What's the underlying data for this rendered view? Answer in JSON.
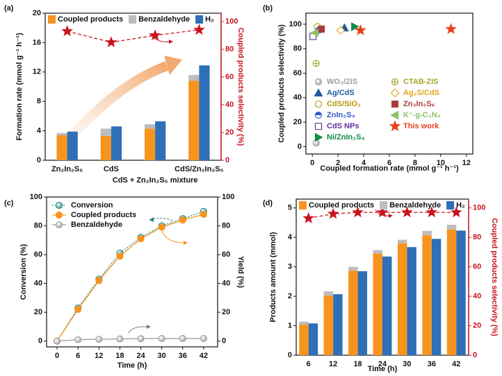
{
  "chart_data": [
    {
      "type": "bar",
      "panel_label": "(a)",
      "categories": [
        "Zn₂In₂S₅",
        "CdS",
        "CdS + Zn₂In₂S₅ mixture",
        "CdS/Zn₂In₂S₅"
      ],
      "ylabel": "Formation rate (mmol g⁻¹ h⁻¹)",
      "y2label": "Coupled products selectivity (%)",
      "ylim": [
        0,
        20
      ],
      "yticks": [
        0,
        4,
        8,
        12,
        16,
        20
      ],
      "y2lim": [
        0,
        106
      ],
      "y2ticks": [
        0,
        20,
        40,
        60,
        80,
        100
      ],
      "y2color": "#c8141e",
      "series": [
        {
          "name": "Coupled products",
          "color": "#f7941d",
          "stack": "a",
          "values": [
            3.4,
            3.3,
            4.3,
            10.8
          ]
        },
        {
          "name": "Benzaldehyde",
          "color": "#bdbdbd",
          "stack": "a",
          "values": [
            0.3,
            1.0,
            0.6,
            0.8
          ]
        },
        {
          "name": "H₂",
          "color": "#2e6fb7",
          "stack": "b",
          "values": [
            3.9,
            4.6,
            5.3,
            12.9
          ]
        },
        {
          "type": "line",
          "axis": "y2",
          "color": "#c8141e",
          "marker": "star",
          "linestyle": "dashed",
          "values": [
            93,
            85,
            90,
            94
          ]
        }
      ]
    },
    {
      "type": "scatter",
      "panel_label": "(b)",
      "xlabel": "Coupled formation rate (mmol g⁻¹ h⁻¹)",
      "ylabel": "Coupled products selectivity (%)",
      "xlim": [
        -0.5,
        12.5
      ],
      "xticks": [
        0,
        2,
        4,
        6,
        8,
        10,
        12
      ],
      "ylim": [
        -6,
        109
      ],
      "yticks": [
        0,
        20,
        40,
        60,
        80,
        100
      ],
      "series": [
        {
          "name": "WO₃/ZIS",
          "color": "#9e9e9e",
          "marker": "sphere",
          "x": [
            0.3
          ],
          "values": [
            3
          ]
        },
        {
          "name": "Ag/CdS",
          "color": "#1f5c99",
          "marker": "tri-up",
          "x": [
            2.5
          ],
          "values": [
            97
          ]
        },
        {
          "name": "CdS/SiO₂",
          "color": "#b39700",
          "marker": "circle-open",
          "x": [
            0.4
          ],
          "values": [
            98
          ]
        },
        {
          "name": "ZnIn₂S₄",
          "color": "#3355cc",
          "marker": "circle-half",
          "x": [
            0.5
          ],
          "values": [
            95
          ]
        },
        {
          "name": "CdS NPs",
          "color": "#5b2a9a",
          "marker": "square-open",
          "x": [
            0.05
          ],
          "values": [
            90
          ]
        },
        {
          "name": "Ni/ZnIn₂S₄",
          "color": "#138a4a",
          "marker": "tri-right",
          "x": [
            3.3
          ],
          "values": [
            98
          ]
        },
        {
          "name": "CTAB-ZIS",
          "color": "#a4a52a",
          "marker": "circle-cross",
          "x": [
            0.3
          ],
          "values": [
            68
          ]
        },
        {
          "name": "Ag₂S/CdS",
          "color": "#e3a21a",
          "marker": "diamond-open",
          "x": [
            2.2
          ],
          "values": [
            95
          ]
        },
        {
          "name": "Zn₃In₂S₆",
          "color": "#a83c3c",
          "marker": "square",
          "x": [
            0.7
          ],
          "values": [
            96
          ]
        },
        {
          "name": "K⁺-g-C₃N₄",
          "color": "#8cc063",
          "marker": "tri-left",
          "x": [
            0.2
          ],
          "values": [
            93
          ]
        },
        {
          "name": "This work",
          "color": "#e8401c",
          "marker": "star",
          "x": [
            3.75,
            10.8
          ],
          "values": [
            95,
            96
          ]
        }
      ]
    },
    {
      "type": "line",
      "panel_label": "(c)",
      "xlabel": "Time (h)",
      "ylabel": "Conversion (%)",
      "y2label": "Yield (%)",
      "x": [
        0,
        6,
        12,
        18,
        24,
        30,
        36,
        42
      ],
      "xlim": [
        -3,
        46
      ],
      "xticks": [
        0,
        6,
        12,
        18,
        24,
        30,
        36,
        42
      ],
      "ylim": [
        -4,
        100
      ],
      "yticks": [
        0,
        20,
        40,
        60,
        80,
        100
      ],
      "y2lim": [
        -4,
        100
      ],
      "y2ticks": [
        0,
        20,
        40,
        60,
        80,
        100
      ],
      "series": [
        {
          "name": "Conversion",
          "color": "#2a8a80",
          "marker": "sphere",
          "linestyle": "dotted",
          "values": [
            0,
            23,
            43,
            61,
            72,
            80,
            85,
            90
          ]
        },
        {
          "name": "Coupled products",
          "color": "#f7941d",
          "marker": "circle-fill",
          "axis": "y2",
          "values": [
            0,
            22,
            42,
            59,
            71,
            79,
            84,
            88
          ]
        },
        {
          "name": "Benzaldehyde",
          "color": "#9e9e9e",
          "marker": "sphere",
          "axis": "y2",
          "values": [
            0,
            1,
            1.3,
            1.5,
            1.7,
            1.8,
            1.8,
            1.8
          ]
        }
      ]
    },
    {
      "type": "bar",
      "panel_label": "(d)",
      "categories": [
        "6",
        "12",
        "18",
        "24",
        "30",
        "36",
        "42"
      ],
      "xlabel": "Time (h)",
      "ylabel": "Products amount (mmol)",
      "y2label": "Coupled products selectivity (%)",
      "ylim": [
        0,
        5.3
      ],
      "yticks": [
        0,
        1,
        2,
        3,
        4,
        5
      ],
      "y2lim": [
        0,
        106
      ],
      "y2ticks": [
        0,
        20,
        40,
        60,
        80,
        100
      ],
      "y2color": "#c8141e",
      "series": [
        {
          "name": "Coupled products",
          "color": "#f7941d",
          "stack": "a",
          "values": [
            1.04,
            2.03,
            2.87,
            3.45,
            3.8,
            4.07,
            4.27
          ]
        },
        {
          "name": "Benzaldehyde",
          "color": "#bdbdbd",
          "stack": "a",
          "values": [
            0.1,
            0.14,
            0.13,
            0.12,
            0.12,
            0.15,
            0.16
          ]
        },
        {
          "name": "H₂",
          "color": "#2e6fb7",
          "stack": "b",
          "values": [
            1.08,
            2.07,
            2.85,
            3.35,
            3.67,
            3.95,
            4.23
          ]
        },
        {
          "type": "line",
          "axis": "y2",
          "color": "#c8141e",
          "marker": "star",
          "linestyle": "dashed",
          "values": [
            93,
            96,
            97,
            97,
            97,
            97,
            97
          ]
        }
      ]
    }
  ]
}
